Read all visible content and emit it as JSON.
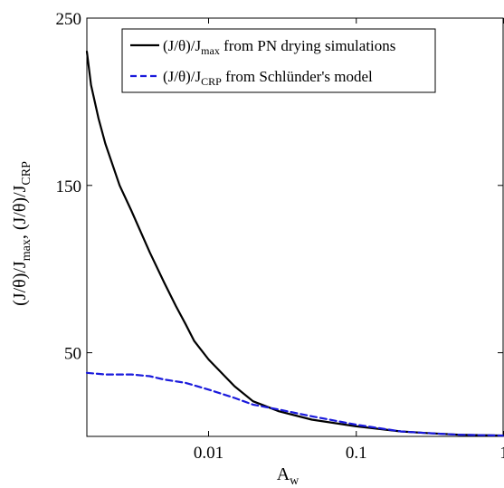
{
  "chart_data": {
    "type": "line",
    "xscale": "log",
    "xlim": [
      0.0015,
      1
    ],
    "ylim": [
      0,
      250
    ],
    "x_ticks": [
      "0.01",
      "0.1",
      "1"
    ],
    "y_ticks": [
      "50",
      "150",
      "250"
    ],
    "xlabel": {
      "main": "A",
      "sub": "w"
    },
    "ylabel": {
      "part1": "(J/θ)/J",
      "sub1": "max",
      "part2": ", (J/θ)/J",
      "sub2": "CRP"
    },
    "legend_position": "top-right",
    "grid": false,
    "series": [
      {
        "name": {
          "pre": "(J/θ)/J",
          "sub": "max",
          "post": " from PN drying simulations"
        },
        "color": "#000000",
        "style": "solid",
        "points": [
          [
            0.0015,
            230
          ],
          [
            0.0016,
            210
          ],
          [
            0.0018,
            190
          ],
          [
            0.002,
            175
          ],
          [
            0.0025,
            150
          ],
          [
            0.003,
            135
          ],
          [
            0.004,
            110
          ],
          [
            0.005,
            92
          ],
          [
            0.006,
            78
          ],
          [
            0.007,
            67
          ],
          [
            0.008,
            57
          ],
          [
            0.01,
            46
          ],
          [
            0.015,
            30
          ],
          [
            0.02,
            21
          ],
          [
            0.03,
            15
          ],
          [
            0.05,
            10
          ],
          [
            0.1,
            6
          ],
          [
            0.2,
            3
          ],
          [
            0.3,
            2
          ],
          [
            0.5,
            1
          ],
          [
            1,
            0.5
          ]
        ]
      },
      {
        "name": {
          "pre": "(J/θ)/J",
          "sub": "CRP",
          "post": " from Schlünder's model"
        },
        "color": "#1a1adc",
        "style": "dashed",
        "points": [
          [
            0.0015,
            38
          ],
          [
            0.002,
            37
          ],
          [
            0.003,
            37
          ],
          [
            0.004,
            36
          ],
          [
            0.005,
            34
          ],
          [
            0.007,
            32
          ],
          [
            0.01,
            28
          ],
          [
            0.015,
            23
          ],
          [
            0.02,
            19
          ],
          [
            0.03,
            16
          ],
          [
            0.05,
            12
          ],
          [
            0.1,
            7
          ],
          [
            0.2,
            3
          ],
          [
            0.3,
            2
          ],
          [
            0.5,
            1
          ],
          [
            1,
            0.5
          ]
        ]
      }
    ]
  }
}
